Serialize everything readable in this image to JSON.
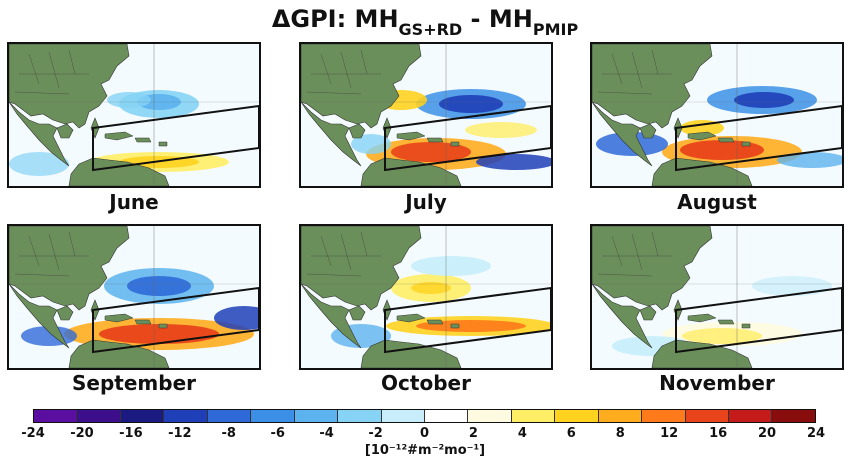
{
  "title": {
    "lead": "ΔGPI: MH",
    "sub1": "GS+RD",
    "mid": " - MH",
    "sub2": "PMIP"
  },
  "panels": [
    {
      "month": "June",
      "pattern": "june"
    },
    {
      "month": "July",
      "pattern": "july"
    },
    {
      "month": "August",
      "pattern": "august"
    },
    {
      "month": "September",
      "pattern": "september"
    },
    {
      "month": "October",
      "pattern": "october"
    },
    {
      "month": "November",
      "pattern": "november"
    }
  ],
  "colors": {
    "land": "#6b8f5a",
    "ocean": "#f4fbff",
    "box": "#111111",
    "colorbar": [
      "#5b0fa0",
      "#3d0f8c",
      "#1a1a80",
      "#1f3fb8",
      "#2f6ad8",
      "#3b8fe6",
      "#5cb3ef",
      "#86d3f5",
      "#c8eefb",
      "#ffffff",
      "#fffbe0",
      "#ffee66",
      "#ffd21f",
      "#ffac1f",
      "#ff7a1a",
      "#e8431a",
      "#c41a1a",
      "#8a0d0d"
    ]
  },
  "colorbar": {
    "ticks": [
      "-24",
      "-20",
      "-16",
      "-12",
      "-8",
      "-6",
      "-4",
      "-2",
      "0",
      "2",
      "4",
      "6",
      "8",
      "12",
      "16",
      "20",
      "24"
    ],
    "units": "[10⁻¹²#m⁻²mo⁻¹]"
  }
}
